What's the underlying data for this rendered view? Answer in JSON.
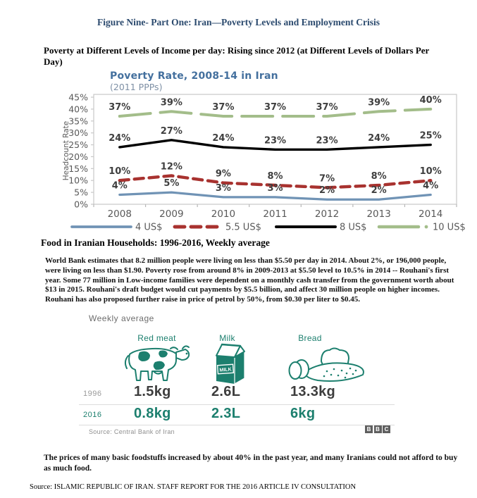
{
  "page": {
    "figure_title": "Figure Nine- Part One:  Iran—Poverty Levels and Employment Crisis",
    "section1_heading": "Poverty at Different Levels of Income per day: Rising since 2012 (at Different Levels of Dollars Per Day)",
    "section2_heading": "Food in Iranian Households: 1996-2016, Weekly average",
    "body_paragraph": "World Bank estimates that 8.2 million people were living on less than $5.50 per day in 2014. About 2%, or 196,000 people, were living on less than $1.90. Poverty rose from around 8% in 2009-2013 at $5.50 level to 10.5% in 2014 -- Rouhani's first year. Some 77 million in Low-income families were dependent on a monthly cash transfer from the government worth about $13 in 2015. Rouhani's draft budget would cut payments by $5.5 billion, and affect 30 million people on higher incomes. Rouhani has also proposed further raise in price of petrol by 50%, from $0.30 per liter to $0.45.",
    "closing_paragraph": "The prices of many basic foodstuffs increased by about 40% in the past year, and many Iranians could not afford to buy as much food.",
    "source_line": "Source: ISLAMIC REPUBLIC OF IRAN. STAFF REPORT FOR THE 2016 ARTICLE IV CONSULTATION"
  },
  "chart_data": {
    "type": "line",
    "title": "Poverty Rate, 2008-14 in Iran",
    "subtitle": "(2011 PPPs)",
    "ylabel": "Headcount Rate",
    "categories": [
      "2008",
      "2009",
      "2010",
      "2011",
      "2012",
      "2013",
      "2014"
    ],
    "series": [
      {
        "name": "4 US$",
        "color": "#7093b5",
        "dash": "solid",
        "values": [
          4,
          5,
          3,
          3,
          2,
          2,
          4
        ]
      },
      {
        "name": "5.5 US$",
        "color": "#a8322f",
        "dash": "dashed",
        "values": [
          10,
          12,
          9,
          8,
          7,
          8,
          10
        ]
      },
      {
        "name": "8 US$",
        "color": "#000000",
        "dash": "solid",
        "values": [
          24,
          27,
          24,
          23,
          23,
          24,
          25
        ]
      },
      {
        "name": "10 US$",
        "color": "#a3bd8a",
        "dash": "long-dash",
        "values": [
          37,
          39,
          37,
          37,
          37,
          39,
          40
        ]
      }
    ],
    "ylim": [
      0,
      45
    ],
    "ytick_step": 5,
    "ytick_format": "percent",
    "data_labels": true,
    "grid": false,
    "legend_position": "bottom"
  },
  "infographic": {
    "title": "Weekly average",
    "accent_color": "#1c7f6e",
    "columns": [
      {
        "label": "Red meat",
        "icon": "cow-icon"
      },
      {
        "label": "Milk",
        "icon": "milk-carton-icon"
      },
      {
        "label": "Bread",
        "icon": "bread-icon"
      }
    ],
    "rows": [
      {
        "year": "1996",
        "values": [
          "1.5kg",
          "2.6L",
          "13.3kg"
        ]
      },
      {
        "year": "2016",
        "values": [
          "0.8kg",
          "2.3L",
          "6kg"
        ]
      }
    ],
    "source": "Source: Central Bank of Iran",
    "brand_letters": [
      "B",
      "B",
      "C"
    ]
  }
}
